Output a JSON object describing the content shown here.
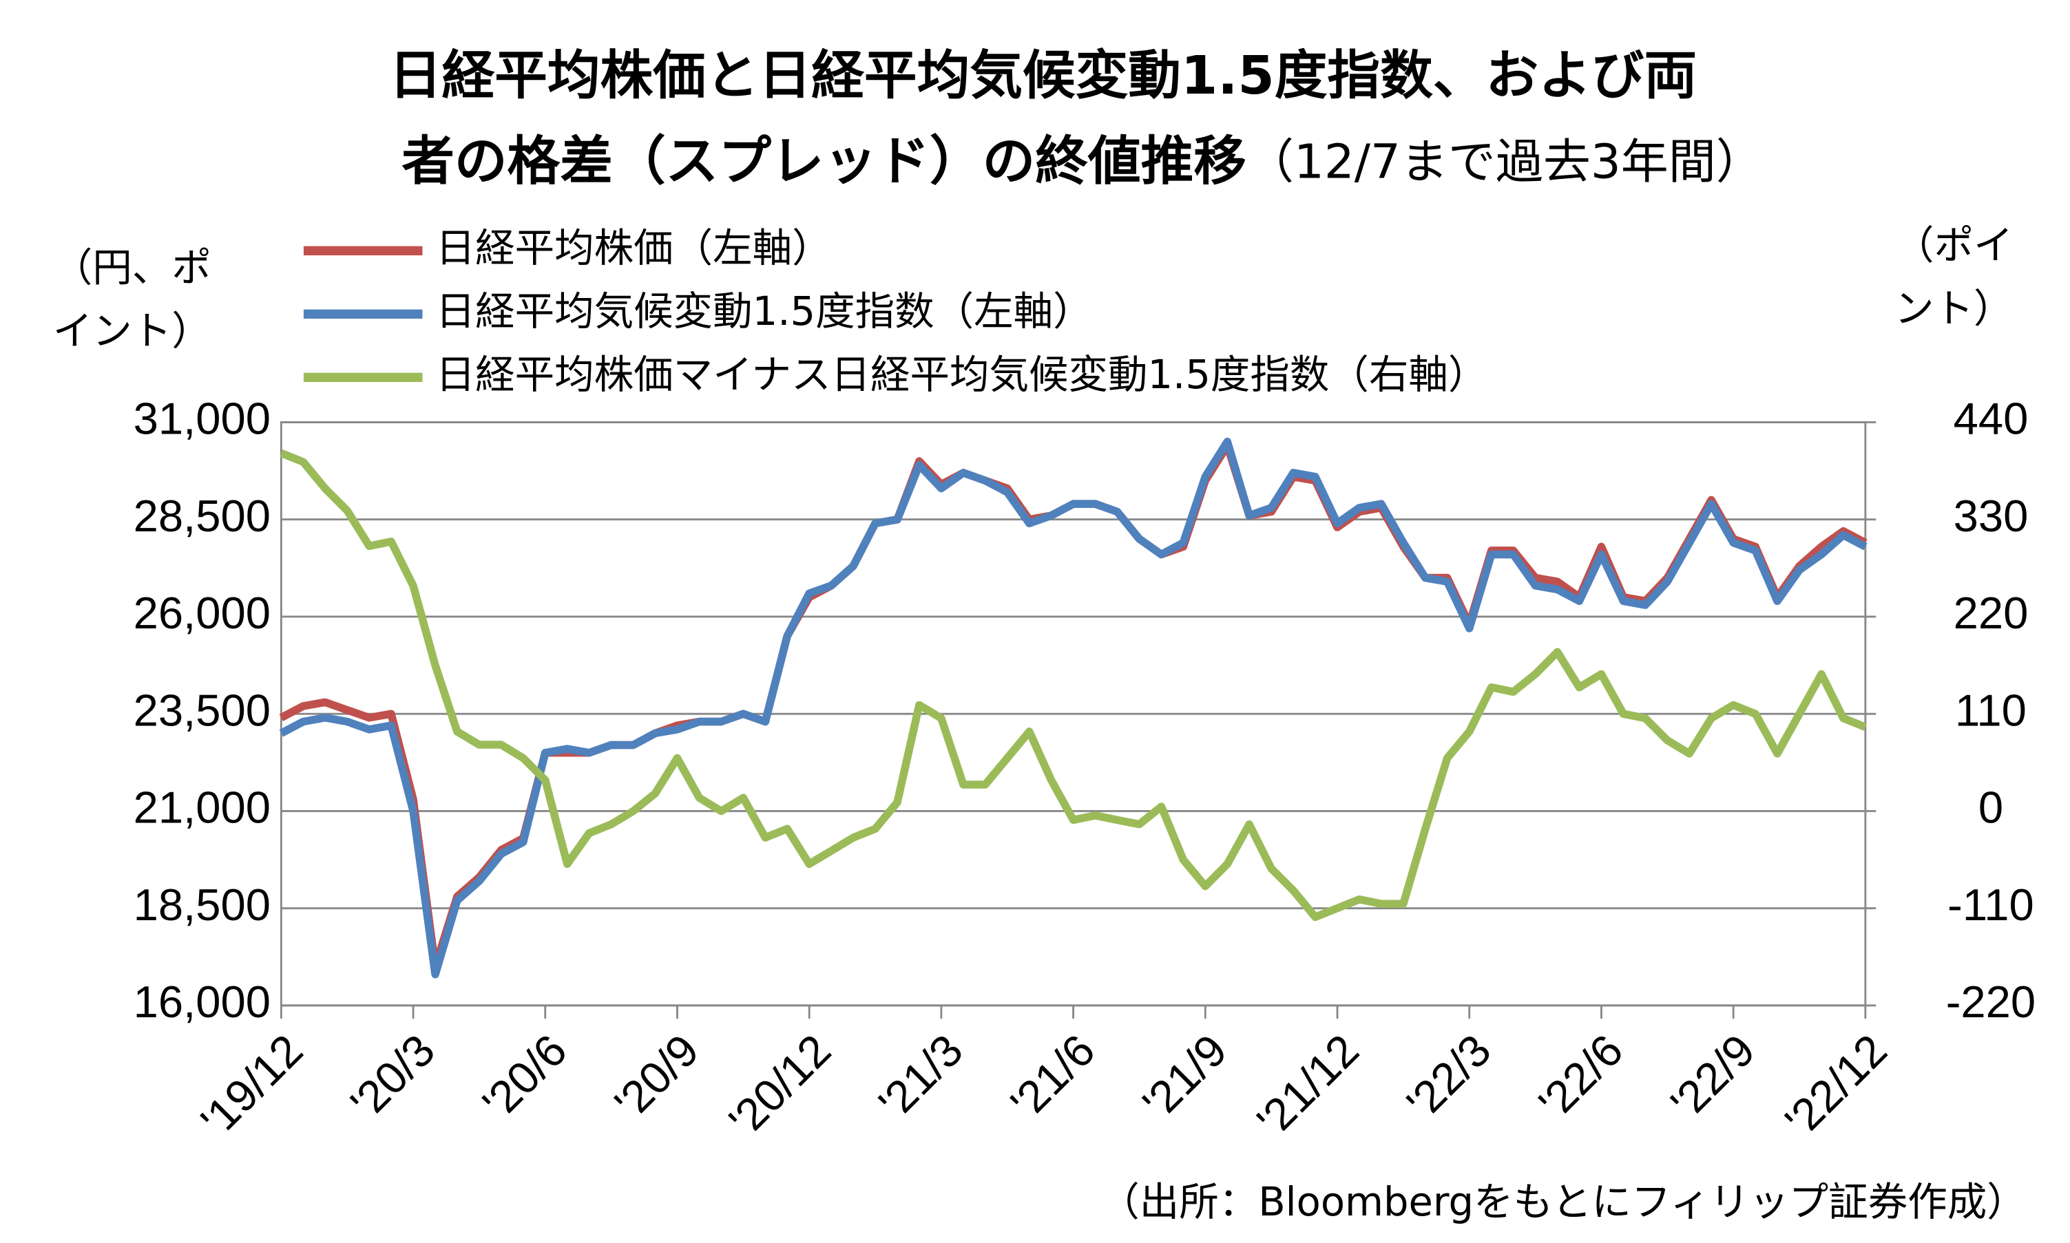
{
  "chart_data": {
    "type": "line",
    "title_lines": [
      "日経平均株価と日経平均気候変動1.5度指数、および両",
      "者の格差（スプレッド）の終値推移"
    ],
    "subtitle": "（12/7まで過去3年間）",
    "y_label_lines": [
      "（円、ポ",
      "イント）"
    ],
    "y2_label_lines": [
      "（ポイ",
      "ント）"
    ],
    "source": "（出所：Bloombergをもとにフィリップ証券作成）",
    "categories": [
      "'19/12",
      null,
      null,
      null,
      null,
      null,
      "'20/3",
      null,
      null,
      null,
      null,
      null,
      "'20/6",
      null,
      null,
      null,
      null,
      null,
      "'20/9",
      null,
      null,
      null,
      null,
      null,
      "'20/12",
      null,
      null,
      null,
      null,
      null,
      "'21/3",
      null,
      null,
      null,
      null,
      null,
      "'21/6",
      null,
      null,
      null,
      null,
      null,
      "'21/9",
      null,
      null,
      null,
      null,
      null,
      "'21/12",
      null,
      null,
      null,
      null,
      null,
      "'22/3",
      null,
      null,
      null,
      null,
      null,
      "'22/6",
      null,
      null,
      null,
      null,
      null,
      "'22/9",
      null,
      null,
      null,
      null,
      null,
      "'22/12"
    ],
    "series": [
      {
        "name": "日経平均株価（左軸）",
        "color": "#c0504d",
        "values": [
          23400,
          23700,
          23800,
          23600,
          23400,
          23500,
          21300,
          17000,
          18800,
          19300,
          20000,
          20300,
          22500,
          22500,
          22500,
          22700,
          22700,
          23000,
          23200,
          23300,
          23300,
          23500,
          23300,
          25500,
          26500,
          26800,
          27300,
          28400,
          28500,
          30000,
          29400,
          29700,
          29500,
          29300,
          28500,
          28600,
          28900,
          28900,
          28700,
          28000,
          27600,
          27800,
          29500,
          30400,
          28600,
          28700,
          29600,
          29500,
          28300,
          28700,
          28800,
          27800,
          27000,
          27000,
          25800,
          27700,
          27700,
          27000,
          26900,
          26500,
          27800,
          26500,
          26400,
          27000,
          28000,
          29000,
          28000,
          27800,
          26500,
          27300,
          27800,
          28200,
          27900
        ]
      },
      {
        "name": "日経平均気候変動1.5度指数（左軸）",
        "color": "#4f81bd",
        "values": [
          23000,
          23300,
          23400,
          23300,
          23100,
          23200,
          21000,
          16800,
          18700,
          19200,
          19900,
          20200,
          22500,
          22600,
          22500,
          22700,
          22700,
          23000,
          23100,
          23300,
          23300,
          23500,
          23300,
          25500,
          26600,
          26800,
          27300,
          28400,
          28500,
          29900,
          29300,
          29700,
          29500,
          29200,
          28400,
          28600,
          28900,
          28900,
          28700,
          28000,
          27600,
          27900,
          29600,
          30500,
          28600,
          28800,
          29700,
          29600,
          28400,
          28800,
          28900,
          27900,
          27000,
          26900,
          25700,
          27600,
          27600,
          26800,
          26700,
          26400,
          27600,
          26400,
          26300,
          26900,
          27900,
          28900,
          27900,
          27700,
          26400,
          27200,
          27600,
          28100,
          27800
        ]
      },
      {
        "name": "日経平均株価マイナス日経平均気候変動1.5度指数（右軸）",
        "color": "#9bbb59",
        "axis": "y2",
        "values": [
          405,
          395,
          365,
          340,
          300,
          305,
          255,
          165,
          90,
          75,
          75,
          60,
          35,
          -60,
          -25,
          -15,
          0,
          20,
          60,
          15,
          0,
          15,
          -30,
          -20,
          -60,
          -45,
          -30,
          -20,
          10,
          120,
          105,
          30,
          30,
          60,
          90,
          35,
          -10,
          -5,
          -10,
          -15,
          5,
          -55,
          -85,
          -60,
          -15,
          -65,
          -90,
          -120,
          -110,
          -100,
          -105,
          -105,
          -20,
          60,
          90,
          140,
          135,
          155,
          180,
          140,
          155,
          110,
          105,
          80,
          65,
          105,
          120,
          110,
          65,
          110,
          155,
          105,
          95
        ]
      }
    ],
    "ylim": [
      16000,
      31000
    ],
    "yticks": [
      {
        "value": 31000,
        "label": "31,000"
      },
      {
        "value": 28500,
        "label": "28,500"
      },
      {
        "value": 26000,
        "label": "26,000"
      },
      {
        "value": 23500,
        "label": "23,500"
      },
      {
        "value": 21000,
        "label": "21,000"
      },
      {
        "value": 18500,
        "label": "18,500"
      },
      {
        "value": 16000,
        "label": "16,000"
      }
    ],
    "y2lim": [
      -220,
      440
    ],
    "y2ticks": [
      440,
      330,
      220,
      110,
      0,
      -110,
      -220
    ],
    "grid": true
  }
}
